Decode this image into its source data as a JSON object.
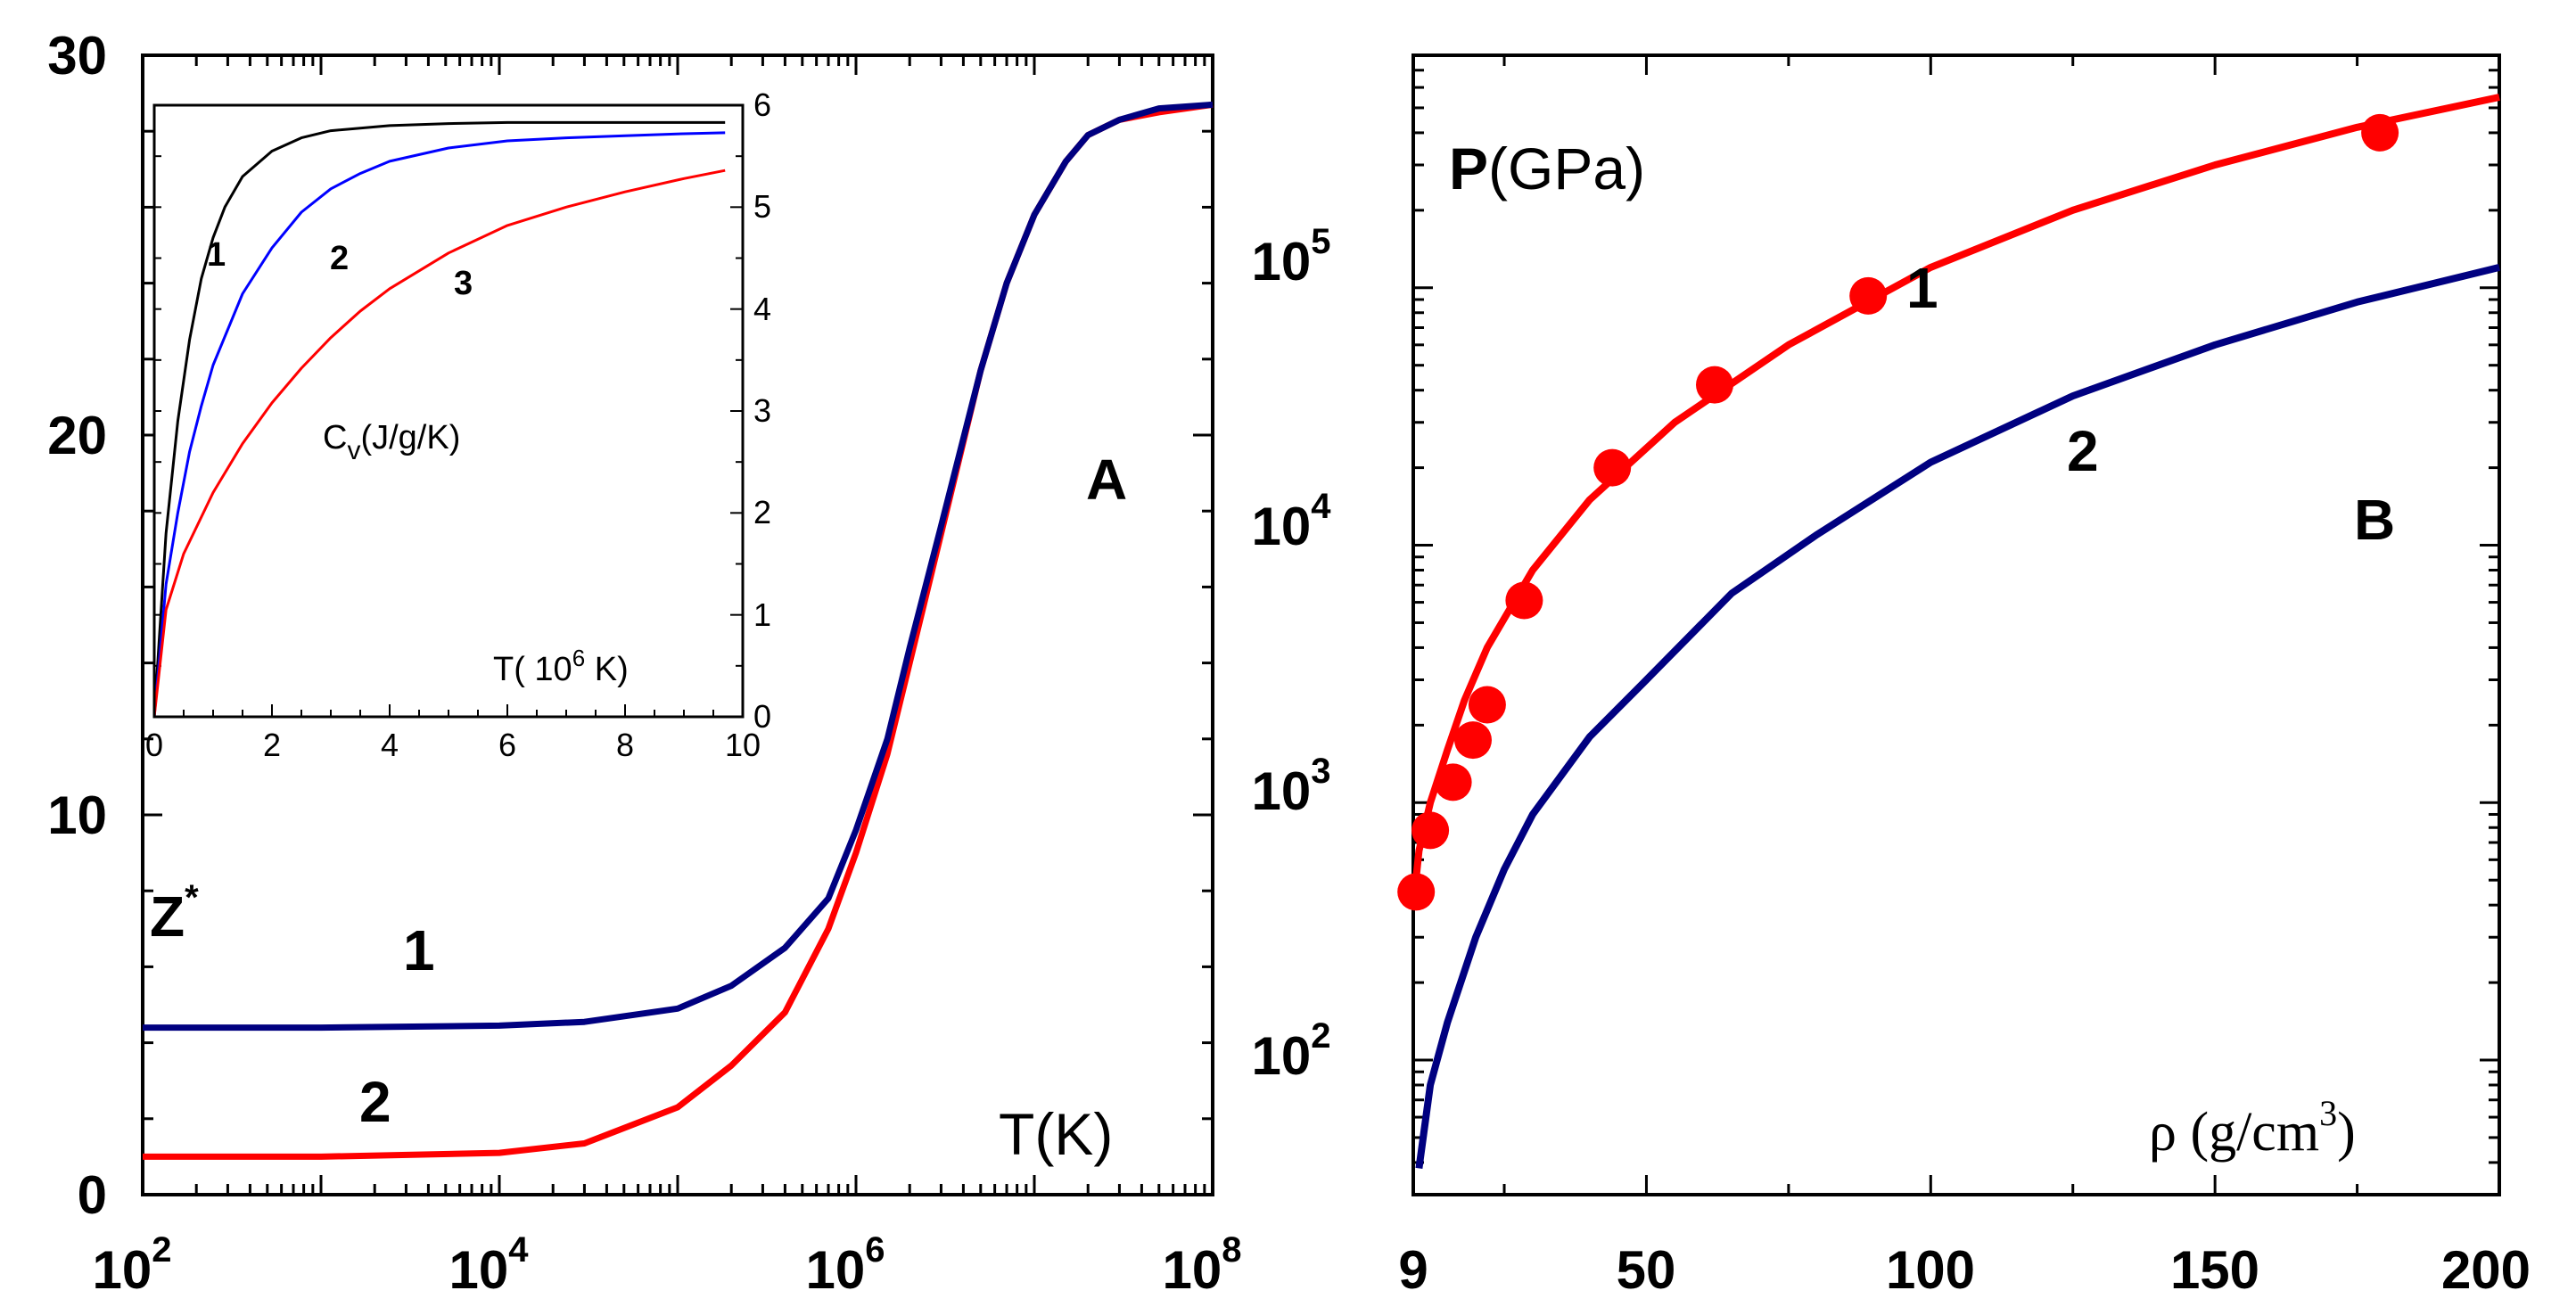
{
  "colors": {
    "curve1_red": "#ff0000",
    "curve2_navy": "#000080",
    "inset_black": "#000000",
    "inset_blue": "#0000ff",
    "inset_red": "#ff0000"
  },
  "chart_data": [
    {
      "id": "A",
      "type": "line",
      "panel_label": "A",
      "xscale": "log",
      "xlim": [
        100,
        100000000
      ],
      "ylim": [
        0,
        30
      ],
      "x_tick_base": "10",
      "x_tick_exponents": [
        "2",
        "4",
        "6",
        "8"
      ],
      "y_ticks": [
        "0",
        "10",
        "20",
        "30"
      ],
      "xlabel": "T(K)",
      "ylabel_main": "Z",
      "ylabel_sup": "*",
      "curve_labels": [
        "1",
        "2"
      ],
      "series": [
        {
          "name": "1",
          "color": "#000080",
          "x": [
            100,
            1000,
            10000,
            30000,
            100000,
            200000,
            400000,
            700000,
            1000000,
            1500000,
            2000000,
            3000000,
            5000000,
            7000000,
            10000000,
            15000000,
            20000000,
            30000000,
            50000000,
            100000000
          ],
          "y": [
            4.4,
            4.4,
            4.45,
            4.55,
            4.9,
            5.5,
            6.5,
            7.8,
            9.6,
            12.0,
            14.4,
            17.6,
            21.7,
            24.0,
            25.8,
            27.2,
            27.9,
            28.3,
            28.6,
            28.7
          ]
        },
        {
          "name": "2",
          "color": "#ff0000",
          "x": [
            100,
            1000,
            10000,
            30000,
            100000,
            200000,
            400000,
            700000,
            1000000,
            1500000,
            2000000,
            3000000,
            5000000,
            7000000,
            10000000,
            15000000,
            20000000,
            30000000,
            50000000,
            100000000
          ],
          "y": [
            1.0,
            1.0,
            1.1,
            1.35,
            2.3,
            3.4,
            4.8,
            7.0,
            9.0,
            11.6,
            14.0,
            17.4,
            21.7,
            24.0,
            25.8,
            27.2,
            27.9,
            28.3,
            28.5,
            28.7
          ]
        }
      ]
    },
    {
      "id": "A-inset",
      "type": "line",
      "xlim": [
        0,
        10
      ],
      "ylim": [
        0,
        6
      ],
      "x_ticks": [
        "0",
        "2",
        "4",
        "6",
        "8",
        "10"
      ],
      "y_ticks": [
        "0",
        "1",
        "2",
        "3",
        "4",
        "5",
        "6"
      ],
      "xlabel_prefix": "T( 10",
      "xlabel_sup": "6",
      "xlabel_suffix": " K)",
      "ylabel_main": "C",
      "ylabel_sub": "v",
      "ylabel_rest": "(J/g/K)",
      "curve_labels": [
        "1",
        "2",
        "3"
      ],
      "series": [
        {
          "name": "1",
          "color": "#000000",
          "x": [
            0,
            0.2,
            0.4,
            0.6,
            0.8,
            1,
            1.2,
            1.5,
            2,
            2.5,
            3,
            4,
            5,
            6,
            7,
            8,
            9,
            9.7
          ],
          "y": [
            0,
            1.8,
            2.9,
            3.7,
            4.3,
            4.7,
            5.0,
            5.3,
            5.55,
            5.68,
            5.75,
            5.8,
            5.82,
            5.83,
            5.83,
            5.83,
            5.83,
            5.83
          ]
        },
        {
          "name": "2",
          "color": "#0000ff",
          "x": [
            0,
            0.2,
            0.4,
            0.6,
            0.8,
            1,
            1.5,
            2,
            2.5,
            3,
            3.5,
            4,
            5,
            6,
            7,
            8,
            9,
            9.7
          ],
          "y": [
            0,
            1.3,
            2.0,
            2.6,
            3.05,
            3.45,
            4.15,
            4.6,
            4.95,
            5.18,
            5.33,
            5.45,
            5.58,
            5.65,
            5.68,
            5.7,
            5.72,
            5.73
          ]
        },
        {
          "name": "3",
          "color": "#ff0000",
          "x": [
            0,
            0.2,
            0.5,
            1,
            1.5,
            2,
            2.5,
            3,
            3.5,
            4,
            5,
            6,
            7,
            8,
            9,
            9.7
          ],
          "y": [
            0,
            1.05,
            1.6,
            2.2,
            2.68,
            3.08,
            3.42,
            3.72,
            3.98,
            4.2,
            4.55,
            4.82,
            5.0,
            5.15,
            5.28,
            5.36
          ]
        }
      ]
    },
    {
      "id": "B",
      "type": "line",
      "panel_label": "B",
      "yscale": "log",
      "xlim": [
        9,
        200
      ],
      "ylim": [
        30,
        800000
      ],
      "x_ticks": [
        "9",
        "50",
        "100",
        "150",
        "200"
      ],
      "y_tick_base": "10",
      "y_tick_exponents": [
        "2",
        "3",
        "4",
        "5"
      ],
      "ylabel_main": "P",
      "ylabel_rest": "(GPa)",
      "xlabel_prefix": "ρ (g/cm",
      "xlabel_sup": "3",
      "xlabel_suffix": ")",
      "curve_labels": [
        "1",
        "2"
      ],
      "series": [
        {
          "name": "1",
          "color": "#ff0000",
          "markers": true,
          "x": [
            9,
            10,
            12,
            15,
            18,
            22,
            30,
            40,
            55,
            75,
            100,
            125,
            150,
            175,
            200
          ],
          "y": [
            400,
            650,
            1000,
            1600,
            2500,
            4000,
            8000,
            15000,
            30000,
            60000,
            120000,
            200000,
            300000,
            420000,
            550000
          ],
          "marker_points": {
            "x": [
              9.5,
              12,
              16,
              19.5,
              22,
              28.5,
              44,
              62,
              89,
              179
            ],
            "y": [
              450,
              780,
              1200,
              1750,
              2400,
              6100,
              20000,
              42000,
              93000,
              400000
            ]
          }
        },
        {
          "name": "2",
          "color": "#000080",
          "markers": false,
          "x": [
            10,
            12,
            15,
            20,
            25,
            30,
            40,
            50,
            65,
            80,
            100,
            125,
            150,
            175,
            200
          ],
          "y": [
            38,
            80,
            140,
            300,
            550,
            900,
            1800,
            3000,
            6500,
            11000,
            21000,
            38000,
            60000,
            88000,
            120000
          ]
        }
      ]
    }
  ]
}
